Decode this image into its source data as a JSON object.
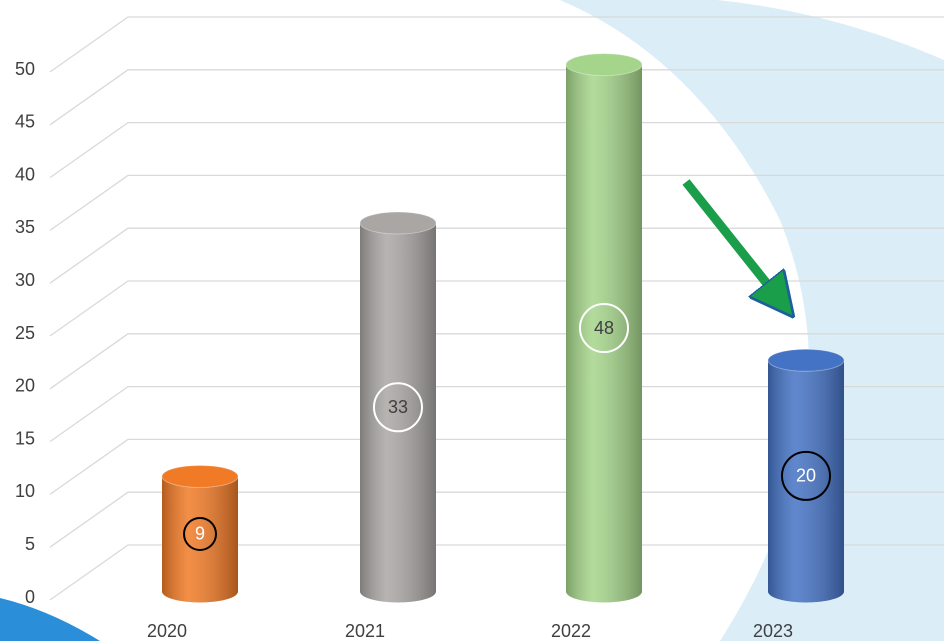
{
  "chart_data": {
    "type": "bar",
    "categories": [
      "2020",
      "2021",
      "2022",
      "2023"
    ],
    "values": [
      9,
      33,
      48,
      20
    ],
    "colors": [
      "#f07a26",
      "#a9a6a4",
      "#a5d58a",
      "#4472c4"
    ],
    "ylim": [
      0,
      50
    ],
    "yticks": [
      0,
      5,
      10,
      15,
      20,
      25,
      30,
      35,
      40,
      45,
      50
    ],
    "grid": true
  }
}
